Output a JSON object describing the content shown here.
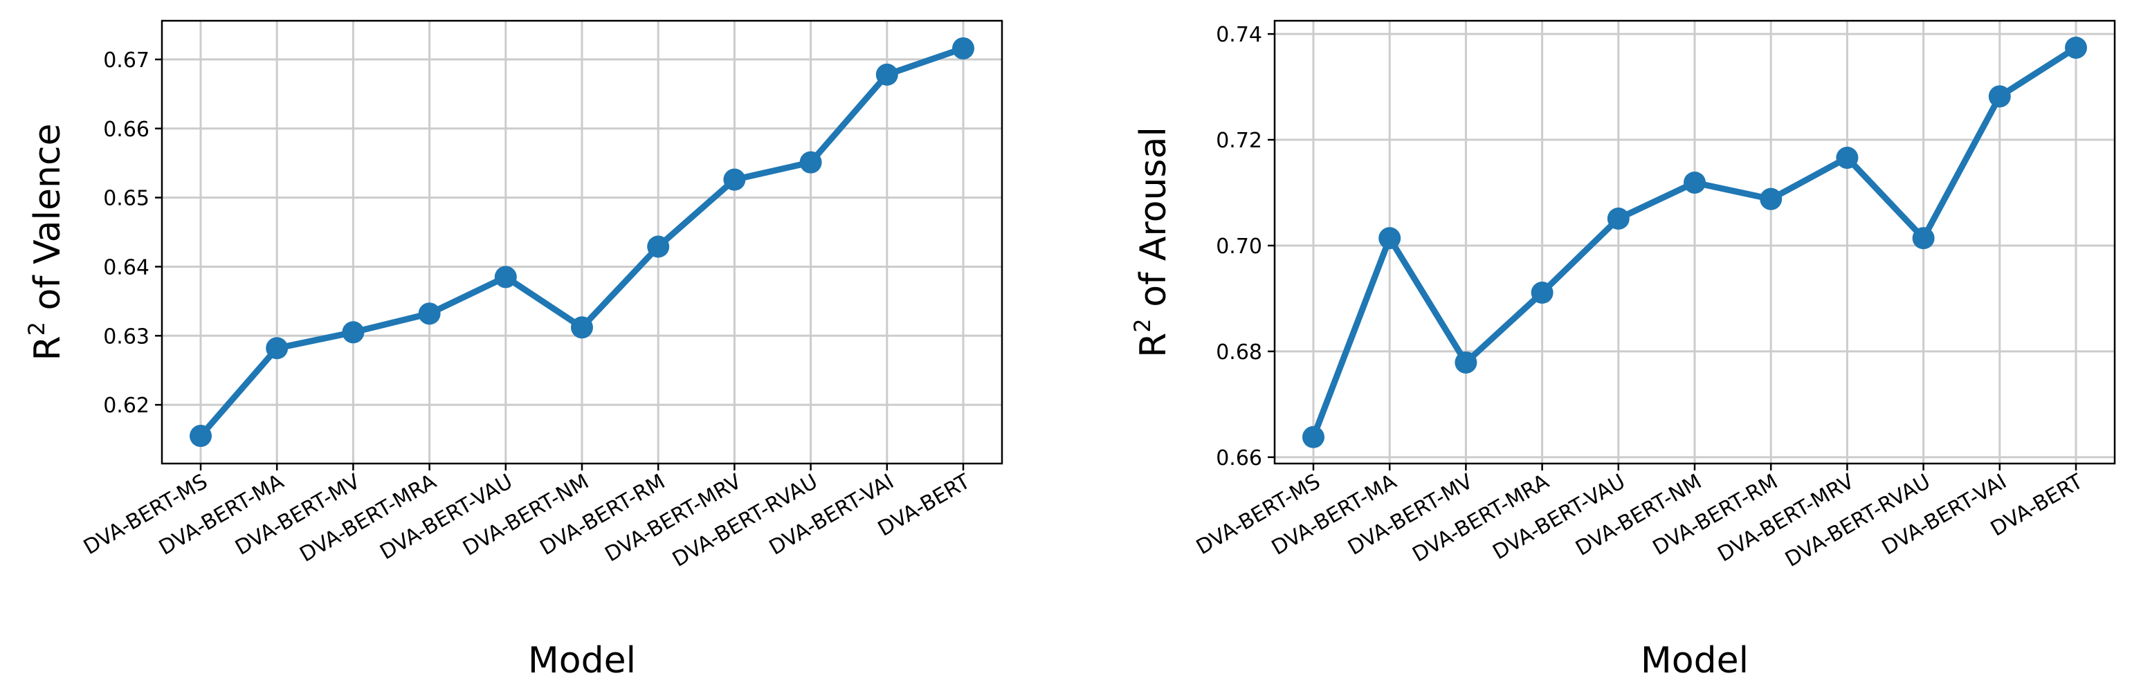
{
  "chart_data": [
    {
      "type": "line",
      "title": "",
      "xlabel": "Model",
      "ylabel": "R² of Valence",
      "ylabel_main": "R",
      "ylabel_sup": "2",
      "ylabel_rest": " of Valence",
      "categories": [
        "DVA-BERT-MS",
        "DVA-BERT-MA",
        "DVA-BERT-MV",
        "DVA-BERT-MRA",
        "DVA-BERT-VAU",
        "DVA-BERT-NM",
        "DVA-BERT-RM",
        "DVA-BERT-MRV",
        "DVA-BERT-RVAU",
        "DVA-BERT-VAI",
        "DVA-BERT"
      ],
      "values": [
        0.6155,
        0.6282,
        0.6305,
        0.6332,
        0.6385,
        0.6312,
        0.6429,
        0.6526,
        0.6551,
        0.6678,
        0.6716
      ],
      "ylim": [
        0.6115,
        0.6756
      ],
      "yticks": [
        0.62,
        0.63,
        0.64,
        0.65,
        0.66,
        0.67
      ],
      "ytick_labels": [
        "0.62",
        "0.63",
        "0.64",
        "0.65",
        "0.66",
        "0.67"
      ],
      "grid": true,
      "color": "#1f77b4"
    },
    {
      "type": "line",
      "title": "",
      "xlabel": "Model",
      "ylabel": "R² of Arousal",
      "ylabel_main": "R",
      "ylabel_sup": "2",
      "ylabel_rest": " of Arousal",
      "categories": [
        "DVA-BERT-MS",
        "DVA-BERT-MA",
        "DVA-BERT-MV",
        "DVA-BERT-MRA",
        "DVA-BERT-VAU",
        "DVA-BERT-NM",
        "DVA-BERT-RM",
        "DVA-BERT-MRV",
        "DVA-BERT-RVAU",
        "DVA-BERT-VAI",
        "DVA-BERT"
      ],
      "values": [
        0.6638,
        0.7014,
        0.6779,
        0.6911,
        0.7051,
        0.7119,
        0.7088,
        0.7166,
        0.7014,
        0.7282,
        0.7374
      ],
      "ylim": [
        0.6588,
        0.7425
      ],
      "yticks": [
        0.66,
        0.68,
        0.7,
        0.72,
        0.74
      ],
      "ytick_labels": [
        "0.66",
        "0.68",
        "0.70",
        "0.72",
        "0.74"
      ],
      "grid": true,
      "color": "#1f77b4"
    }
  ]
}
